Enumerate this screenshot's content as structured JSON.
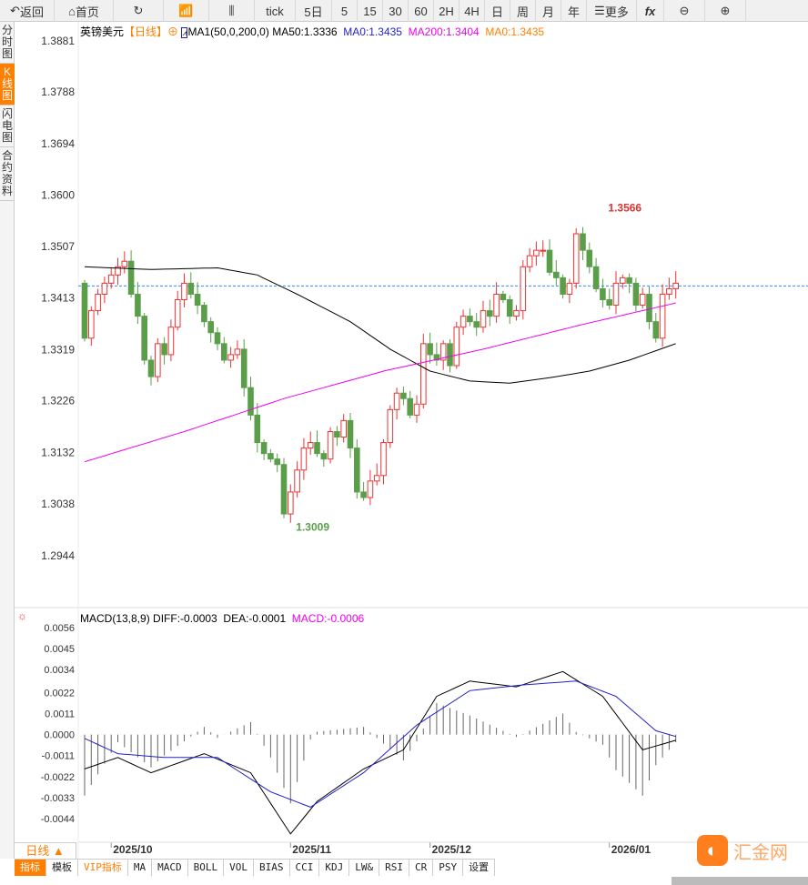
{
  "toolbar": {
    "items": [
      {
        "label": "返回",
        "icon": "back-arrow-icon"
      },
      {
        "label": "首页",
        "icon": "home-icon"
      },
      {
        "label": "",
        "icon": "refresh-icon"
      },
      {
        "label": "",
        "icon": "bar-chart-icon"
      },
      {
        "label": "",
        "icon": "candlestick-icon"
      },
      {
        "label": "tick"
      },
      {
        "label": "5日"
      },
      {
        "label": "5"
      },
      {
        "label": "15"
      },
      {
        "label": "30"
      },
      {
        "label": "60"
      },
      {
        "label": "2H"
      },
      {
        "label": "4H"
      },
      {
        "label": "日"
      },
      {
        "label": "周"
      },
      {
        "label": "月"
      },
      {
        "label": "年"
      },
      {
        "label": "更多",
        "icon": "menu-icon"
      },
      {
        "label": "fx"
      },
      {
        "label": "",
        "icon": "zoom-out-icon"
      },
      {
        "label": "",
        "icon": "zoom-in-icon"
      }
    ]
  },
  "side_tabs": [
    "分时图",
    "K线图",
    "闪电图",
    "合约资料"
  ],
  "legend": {
    "symbol": "英镑美元",
    "period": "【日线】",
    "ma_name": "MA1(50,0,200,0)",
    "ma50": "MA50:1.3336",
    "ma0": "MA0:1.3435",
    "ma200": "MA200:1.3404",
    "ma0b": "MA0:1.3435"
  },
  "macd_legend": {
    "name": "MACD(13,8,9)",
    "diff": "DIFF:-0.0003",
    "dea": "DEA:-0.0001",
    "macd": "MACD:-0.0006"
  },
  "colors": {
    "up": "#e33",
    "down": "#5a9e4a",
    "ma50": "#000",
    "ma200": "#e0e",
    "dea": "#22c",
    "accent": "#ff7f00"
  },
  "chart_data": {
    "type": "candlestick",
    "price_ticks": [
      "1.3881",
      "1.3788",
      "1.3694",
      "1.3600",
      "1.3507",
      "1.3413",
      "1.3319",
      "1.3226",
      "1.3132",
      "1.3038",
      "1.2944"
    ],
    "ylim": [
      1.2944,
      1.3881
    ],
    "x_labels": [
      {
        "label": "2025/10",
        "index": 4
      },
      {
        "label": "2025/11",
        "index": 31
      },
      {
        "label": "2025/12",
        "index": 52
      },
      {
        "label": "2026/01",
        "index": 79
      }
    ],
    "current_price": 1.3435,
    "high_mark": {
      "label": "1.3566",
      "index": 78,
      "value": 1.3566
    },
    "low_mark": {
      "label": "1.3009",
      "index": 31,
      "value": 1.3009
    },
    "first_open": 1.344,
    "closes": [
      1.334,
      1.339,
      1.342,
      1.344,
      1.3455,
      1.347,
      1.348,
      1.342,
      1.338,
      1.33,
      1.327,
      1.333,
      1.331,
      1.336,
      1.341,
      1.344,
      1.342,
      1.34,
      1.337,
      1.335,
      1.333,
      1.33,
      1.331,
      1.332,
      1.325,
      1.32,
      1.315,
      1.313,
      1.312,
      1.311,
      1.302,
      1.306,
      1.31,
      1.314,
      1.315,
      1.313,
      1.312,
      1.317,
      1.316,
      1.319,
      1.314,
      1.306,
      1.305,
      1.308,
      1.309,
      1.315,
      1.321,
      1.324,
      1.323,
      1.32,
      1.322,
      1.333,
      1.331,
      1.33,
      1.333,
      1.329,
      1.336,
      1.338,
      1.337,
      1.336,
      1.339,
      1.338,
      1.342,
      1.341,
      1.338,
      1.339,
      1.347,
      1.349,
      1.35,
      1.35,
      1.346,
      1.345,
      1.342,
      1.344,
      1.353,
      1.35,
      1.347,
      1.343,
      1.341,
      1.34,
      1.344,
      1.345,
      1.344,
      1.34,
      1.342,
      1.337,
      1.334,
      1.342,
      1.343,
      1.344
    ],
    "ma50": [
      [
        0,
        1.347
      ],
      [
        10,
        1.3465
      ],
      [
        20,
        1.3468
      ],
      [
        26,
        1.3455
      ],
      [
        32,
        1.342
      ],
      [
        40,
        1.337
      ],
      [
        46,
        1.332
      ],
      [
        52,
        1.328
      ],
      [
        58,
        1.3262
      ],
      [
        64,
        1.3258
      ],
      [
        70,
        1.3268
      ],
      [
        76,
        1.328
      ],
      [
        82,
        1.33
      ],
      [
        89,
        1.333
      ]
    ],
    "ma200": [
      [
        0,
        1.3115
      ],
      [
        15,
        1.317
      ],
      [
        30,
        1.323
      ],
      [
        45,
        1.328
      ],
      [
        60,
        1.332
      ],
      [
        75,
        1.3365
      ],
      [
        89,
        1.3404
      ]
    ],
    "macd_ticks": [
      "0.0056",
      "0.0045",
      "0.0034",
      "0.0022",
      "0.0011",
      "0.0000",
      "-0.0011",
      "-0.0022",
      "-0.0033",
      "-0.0044"
    ],
    "macd_ylim": [
      -0.0044,
      0.0056
    ],
    "diff": [
      [
        0,
        -0.0018
      ],
      [
        5,
        -0.0012
      ],
      [
        10,
        -0.002
      ],
      [
        18,
        -0.001
      ],
      [
        25,
        -0.002
      ],
      [
        31,
        -0.0052
      ],
      [
        35,
        -0.0035
      ],
      [
        42,
        -0.0018
      ],
      [
        48,
        -0.0008
      ],
      [
        53,
        0.002
      ],
      [
        58,
        0.0028
      ],
      [
        65,
        0.0025
      ],
      [
        72,
        0.0033
      ],
      [
        78,
        0.002
      ],
      [
        84,
        -0.0008
      ],
      [
        89,
        -0.0003
      ]
    ],
    "dea": [
      [
        0,
        -0.0002
      ],
      [
        5,
        -0.001
      ],
      [
        12,
        -0.0012
      ],
      [
        20,
        -0.0012
      ],
      [
        28,
        -0.003
      ],
      [
        34,
        -0.0038
      ],
      [
        42,
        -0.002
      ],
      [
        50,
        0.0005
      ],
      [
        58,
        0.0023
      ],
      [
        66,
        0.0026
      ],
      [
        74,
        0.0028
      ],
      [
        80,
        0.002
      ],
      [
        86,
        0.0002
      ],
      [
        89,
        -0.0001
      ]
    ]
  },
  "bottom": {
    "period": "日线 ▲",
    "tabs": [
      "指标",
      "模板",
      "VIP指标",
      "MA",
      "MACD",
      "BOLL",
      "VOL",
      "BIAS",
      "CCI",
      "KDJ",
      "LW&",
      "RSI",
      "CR",
      "PSY",
      "设置"
    ]
  },
  "logo": {
    "text": "汇金网"
  }
}
